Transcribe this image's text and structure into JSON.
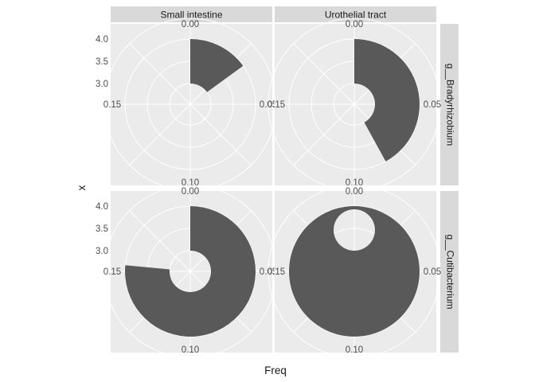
{
  "chart_data": {
    "type": "bar",
    "coord": "polar",
    "xlabel": "Freq",
    "ylabel": "x",
    "facet_cols": [
      "Small intestine",
      "Urothelial tract"
    ],
    "facet_rows": [
      "g__Bradyrhizobium",
      "g__Cutibacterium"
    ],
    "radial_ticks": [
      "3.0",
      "3.5",
      "4.0"
    ],
    "angle_ticks": [
      "0.00",
      "0.05",
      "0.10",
      "0.15"
    ],
    "angle_max": 0.2,
    "panels": [
      {
        "col": "Small intestine",
        "row": "g__Bradyrhizobium",
        "freq": 0.03
      },
      {
        "col": "Urothelial tract",
        "row": "g__Bradyrhizobium",
        "freq": 0.084
      },
      {
        "col": "Small intestine",
        "row": "g__Cutibacterium",
        "freq": 0.153
      },
      {
        "col": "Urothelial tract",
        "row": "g__Cutibacterium",
        "freq": 0.2
      }
    ]
  }
}
